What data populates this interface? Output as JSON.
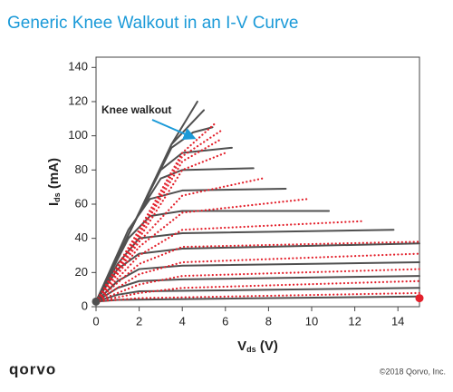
{
  "chart_data": {
    "type": "line",
    "title": "Generic Knee Walkout in an I-V Curve",
    "xlabel": {
      "main": "V",
      "sub": "ds",
      "rest": " (V)"
    },
    "ylabel": {
      "main": "I",
      "sub": "ds",
      "rest": " (mA)"
    },
    "annotation": "Knee walkout",
    "logo": "qorvo",
    "copyright": "©2018 Qorvo, Inc.",
    "xlim": [
      0,
      15
    ],
    "ylim": [
      0,
      146
    ],
    "xticks": [
      0,
      2,
      4,
      6,
      8,
      10,
      12,
      14
    ],
    "yticks": [
      0,
      20,
      40,
      60,
      80,
      100,
      120,
      140
    ],
    "series": [
      {
        "color": "#505050",
        "style": "solid",
        "x": [
          0,
          2,
          3.5,
          4.7
        ],
        "values": [
          3,
          55,
          95,
          120
        ]
      },
      {
        "color": "#505050",
        "style": "solid",
        "x": [
          0,
          2,
          3.5,
          5
        ],
        "values": [
          3,
          55,
          95,
          115
        ]
      },
      {
        "color": "#505050",
        "style": "solid",
        "x": [
          0,
          2,
          3.5,
          4.5,
          5.4
        ],
        "values": [
          3,
          55,
          93,
          102,
          105
        ]
      },
      {
        "color": "#505050",
        "style": "solid",
        "x": [
          0,
          2,
          3,
          4,
          6.3
        ],
        "values": [
          3,
          55,
          80,
          90,
          93
        ]
      },
      {
        "color": "#505050",
        "style": "solid",
        "x": [
          0,
          2,
          3,
          4,
          7.3
        ],
        "values": [
          3,
          55,
          75,
          80,
          81
        ]
      },
      {
        "color": "#505050",
        "style": "solid",
        "x": [
          0,
          1.5,
          2.5,
          4,
          8.8
        ],
        "values": [
          3,
          45,
          63,
          68,
          69
        ]
      },
      {
        "color": "#505050",
        "style": "solid",
        "x": [
          0,
          1.5,
          2.5,
          4,
          10.8
        ],
        "values": [
          3,
          40,
          53,
          56,
          56
        ]
      },
      {
        "color": "#505050",
        "style": "solid",
        "x": [
          0,
          1,
          2,
          4,
          13.8
        ],
        "values": [
          3,
          25,
          40,
          43,
          45
        ]
      },
      {
        "color": "#505050",
        "style": "solid",
        "x": [
          0,
          1,
          2,
          4,
          15
        ],
        "values": [
          3,
          22,
          31,
          34,
          37
        ]
      },
      {
        "color": "#505050",
        "style": "solid",
        "x": [
          0,
          1,
          2,
          4,
          15
        ],
        "values": [
          3,
          15,
          22,
          24,
          26
        ]
      },
      {
        "color": "#505050",
        "style": "solid",
        "x": [
          0,
          1,
          2,
          4,
          15
        ],
        "values": [
          3,
          11,
          15,
          16,
          18
        ]
      },
      {
        "color": "#505050",
        "style": "solid",
        "x": [
          0,
          1,
          2,
          15
        ],
        "values": [
          3,
          7,
          9,
          11
        ]
      },
      {
        "color": "#505050",
        "style": "solid",
        "x": [
          0,
          1,
          15
        ],
        "values": [
          3,
          4,
          6
        ]
      },
      {
        "color": "#e3202b",
        "style": "dotted",
        "x": [
          0,
          2,
          4,
          5.5
        ],
        "values": [
          3,
          45,
          90,
          107
        ]
      },
      {
        "color": "#e3202b",
        "style": "dotted",
        "x": [
          0,
          2,
          4,
          5.8
        ],
        "values": [
          3,
          43,
          88,
          103
        ]
      },
      {
        "color": "#e3202b",
        "style": "dotted",
        "x": [
          0,
          2,
          4,
          5.8
        ],
        "values": [
          3,
          42,
          85,
          98
        ]
      },
      {
        "color": "#e3202b",
        "style": "dotted",
        "x": [
          0,
          2,
          4,
          6
        ],
        "values": [
          3,
          40,
          80,
          90
        ]
      },
      {
        "color": "#e3202b",
        "style": "dotted",
        "x": [
          0,
          2,
          4,
          7.7
        ],
        "values": [
          3,
          38,
          65,
          75
        ]
      },
      {
        "color": "#e3202b",
        "style": "dotted",
        "x": [
          0,
          2,
          4,
          9.8
        ],
        "values": [
          3,
          35,
          55,
          63
        ]
      },
      {
        "color": "#e3202b",
        "style": "dotted",
        "x": [
          0,
          2,
          4,
          12.3
        ],
        "values": [
          3,
          30,
          45,
          50
        ]
      },
      {
        "color": "#e3202b",
        "style": "dotted",
        "x": [
          0,
          2,
          4,
          15
        ],
        "values": [
          3,
          25,
          35,
          38
        ]
      },
      {
        "color": "#e3202b",
        "style": "dotted",
        "x": [
          0,
          2,
          4,
          15
        ],
        "values": [
          3,
          19,
          26,
          31
        ]
      },
      {
        "color": "#e3202b",
        "style": "dotted",
        "x": [
          0,
          2,
          4,
          15
        ],
        "values": [
          3,
          13,
          18,
          22
        ]
      },
      {
        "color": "#e3202b",
        "style": "dotted",
        "x": [
          0,
          2,
          4,
          15
        ],
        "values": [
          3,
          8,
          11,
          15
        ]
      },
      {
        "color": "#e3202b",
        "style": "dotted",
        "x": [
          0,
          2,
          15
        ],
        "values": [
          3,
          5,
          8
        ]
      }
    ],
    "markers": [
      {
        "x": 0,
        "y": 3,
        "color": "#505050"
      },
      {
        "x": 15,
        "y": 5,
        "color": "#e3202b"
      }
    ]
  }
}
